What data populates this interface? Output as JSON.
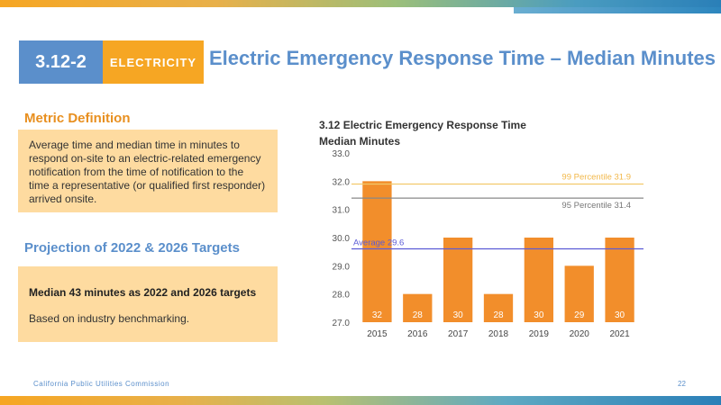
{
  "header": {
    "section": "3.12-2",
    "category": "ELECTRICITY",
    "title": "Electric Emergency Response Time – Median Minutes"
  },
  "definition": {
    "heading": "Metric Definition",
    "text": "Average time and median time in minutes to respond on-site to an electric-related emergency notification from the time of notification to the time a representative (or qualified first responder) arrived onsite."
  },
  "projection": {
    "heading": "Projection of 2022 & 2026 Targets",
    "target": "Median 43 minutes as 2022 and 2026 targets",
    "basis": "Based on industry benchmarking."
  },
  "chart_data": {
    "type": "bar",
    "title": "3.12 Electric Emergency Response Time",
    "subtitle": "Median Minutes",
    "categories": [
      "2015",
      "2016",
      "2017",
      "2018",
      "2019",
      "2020",
      "2021"
    ],
    "values": [
      32,
      28,
      30,
      28,
      30,
      29,
      30
    ],
    "ylim": [
      27.0,
      33.0
    ],
    "yticks": [
      "27.0",
      "28.0",
      "29.0",
      "30.0",
      "31.0",
      "32.0",
      "33.0"
    ],
    "bar_color": "#f28e2b",
    "reference_lines": [
      {
        "label": "99 Percentile 31.9",
        "value": 31.9,
        "color": "#f2c96b"
      },
      {
        "label": "95 Percentile 31.4",
        "value": 31.4,
        "color": "#888888"
      },
      {
        "label": "Average 29.6",
        "value": 29.6,
        "color": "#5b5bd6"
      }
    ]
  },
  "footer": {
    "org": "California Public Utilities Commission",
    "page": "22"
  }
}
